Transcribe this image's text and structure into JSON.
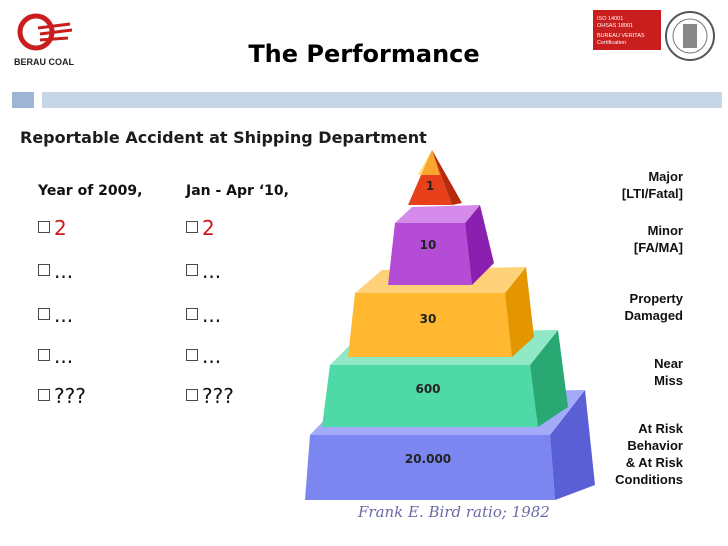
{
  "header": {
    "company_name": "BERAU COAL",
    "title": "The Performance",
    "cert_lines": [
      "ISO 14001",
      "OHSAS 18001",
      "BUREAU VERITAS",
      "Certification"
    ]
  },
  "subtitle": "Reportable Accident at Shipping Department",
  "columns": [
    {
      "header": "Year of 2009,",
      "items": [
        "2",
        "...",
        "...",
        "...",
        "???"
      ]
    },
    {
      "header": "Jan - Apr ‘10,",
      "items": [
        "2",
        "...",
        "...",
        "...",
        "???"
      ]
    }
  ],
  "pyramid": {
    "tiers": [
      {
        "value": "1",
        "color": "#e8401a"
      },
      {
        "value": "10",
        "color": "#b44cd6"
      },
      {
        "value": "30",
        "color": "#ffb830"
      },
      {
        "value": "600",
        "color": "#4fd9a6"
      },
      {
        "value": "20.000",
        "color": "#7c86f0"
      }
    ]
  },
  "labels": [
    [
      "Major",
      "[LTI/Fatal]"
    ],
    [
      "Minor",
      "[FA/MA]"
    ],
    [
      "Property",
      "Damaged"
    ],
    [
      "Near",
      "Miss"
    ],
    [
      "At Risk",
      "Behavior",
      "& At Risk",
      "Conditions"
    ]
  ],
  "footnote": "Frank E. Bird ratio; 1982"
}
